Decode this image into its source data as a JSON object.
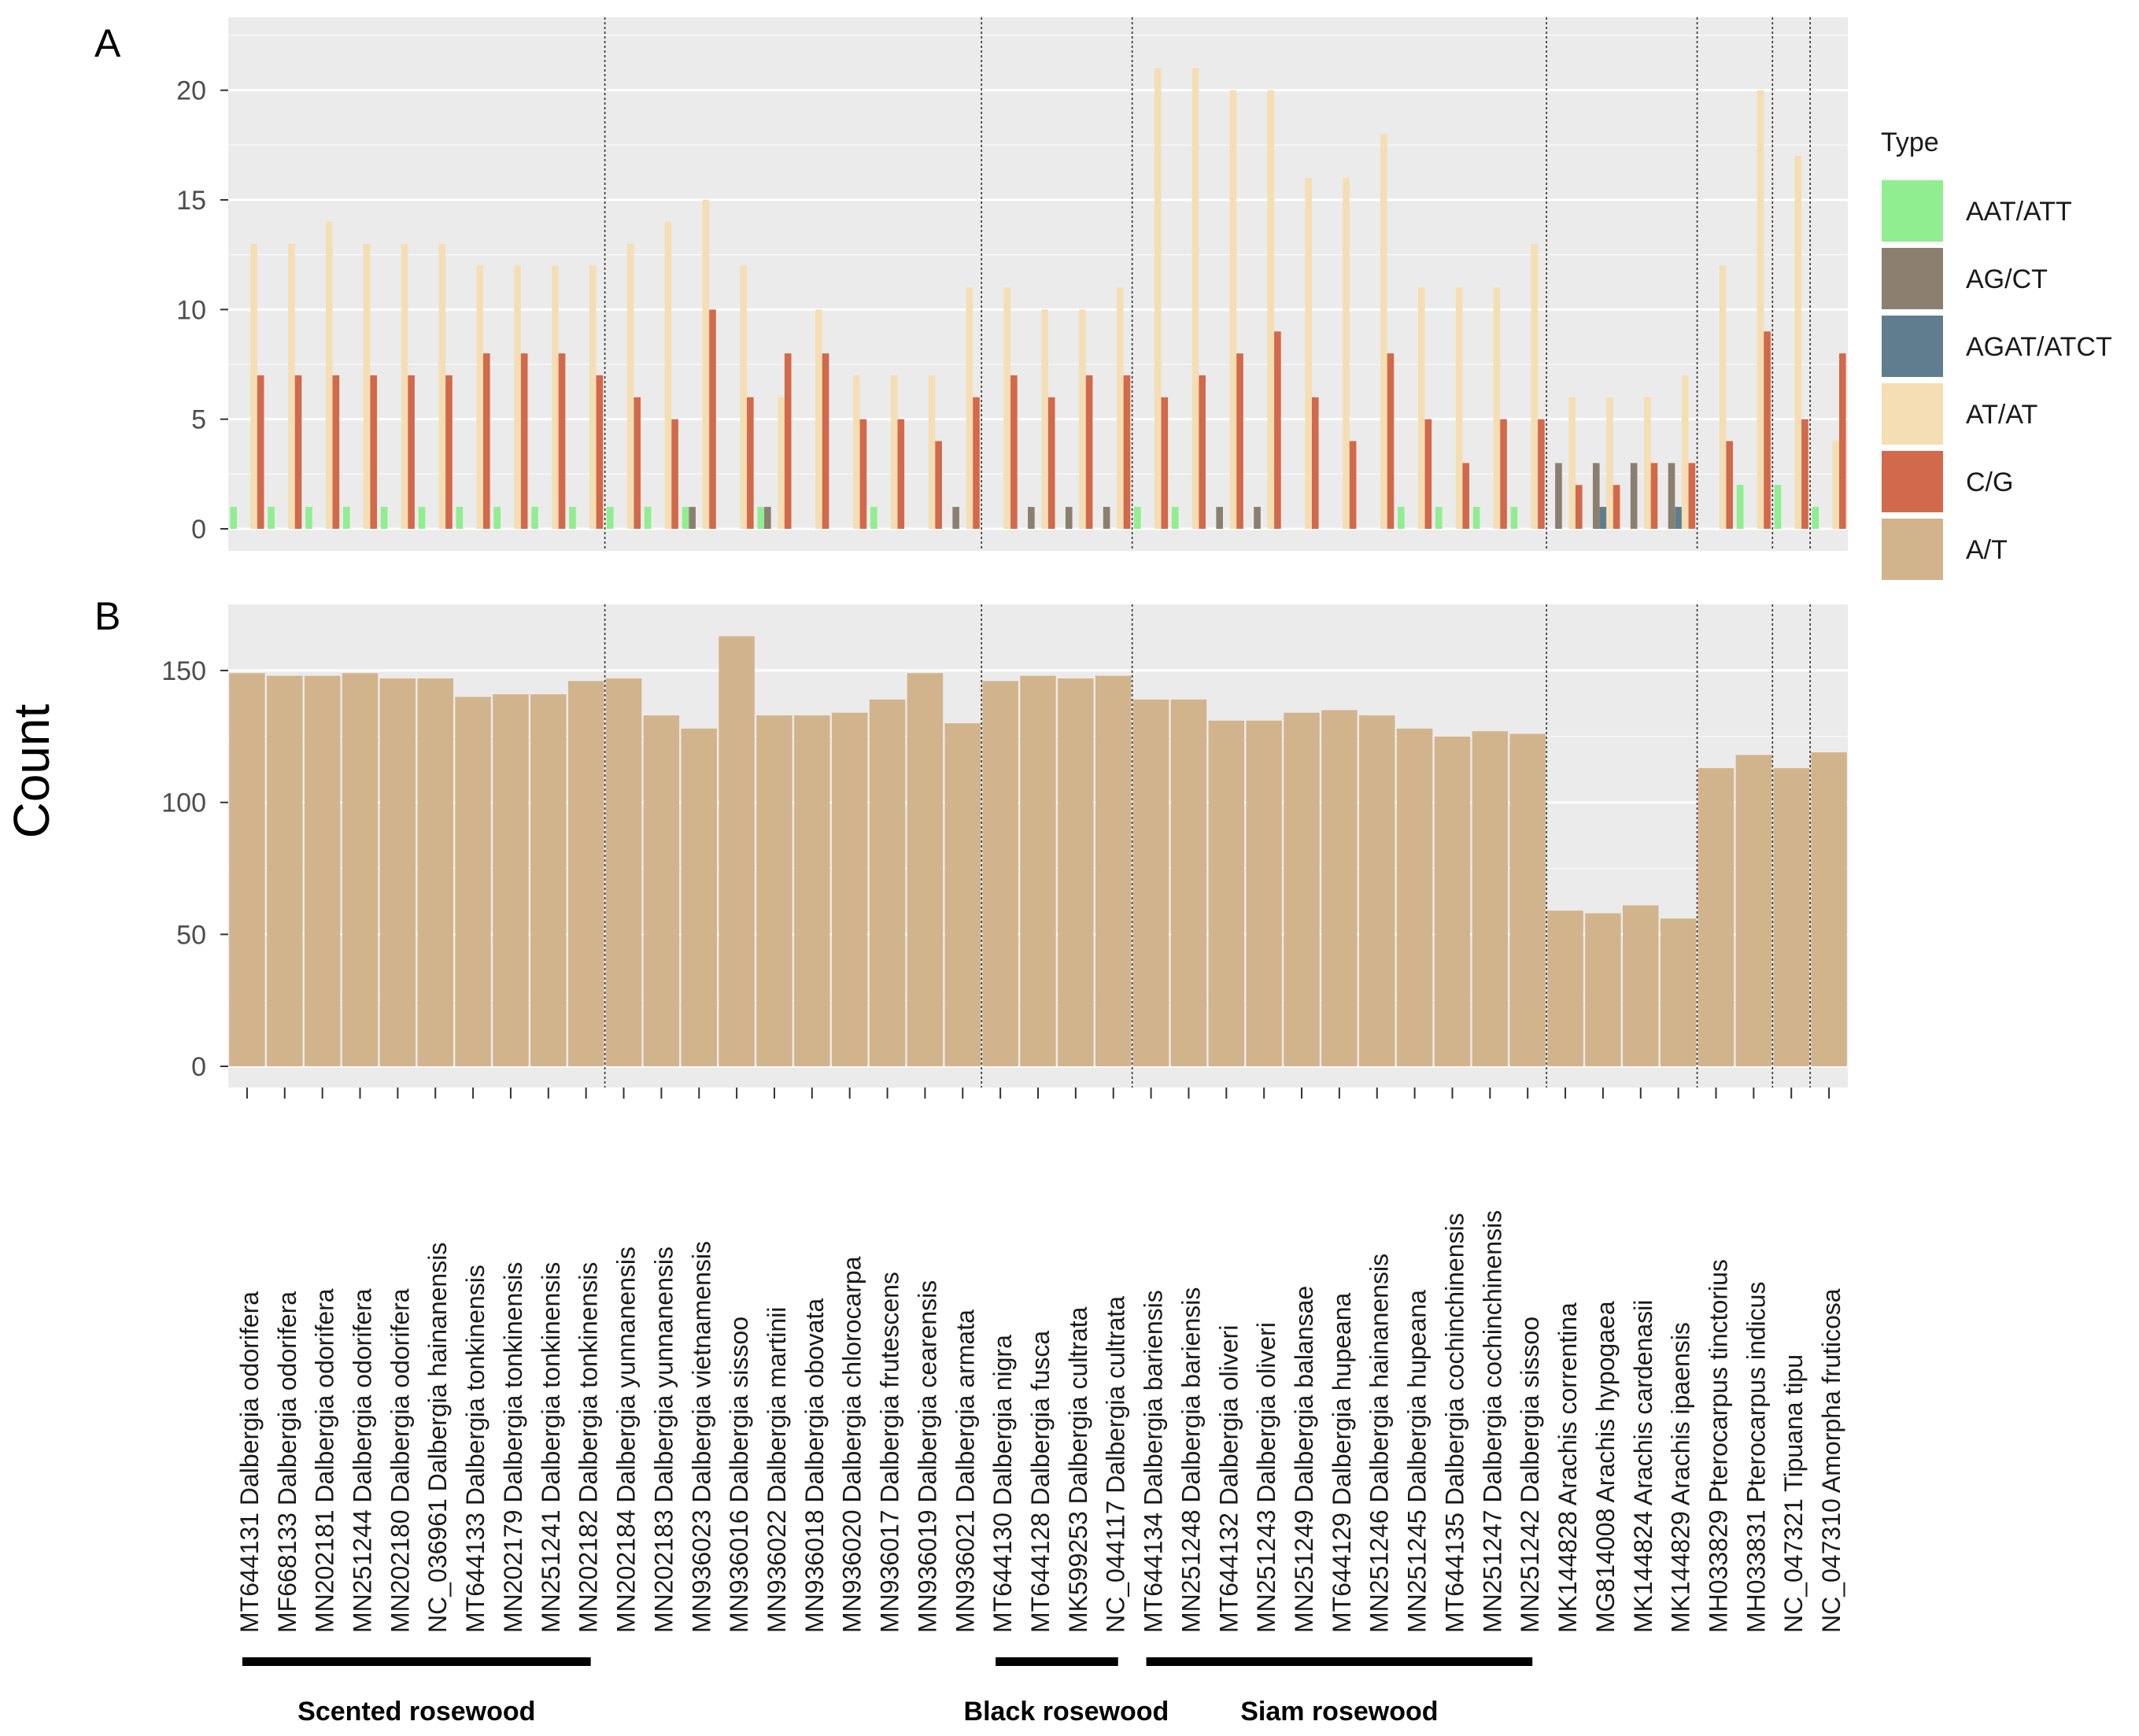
{
  "chart_data": [
    {
      "panel": "A",
      "type": "bar",
      "title": "",
      "xlabel": "",
      "ylabel": "",
      "ylim": [
        0,
        22.5
      ],
      "yticks": [
        0,
        5,
        10,
        15,
        20
      ],
      "grid": true,
      "legend": {
        "title": "Type",
        "position": "right",
        "entries": [
          {
            "name": "AAT/ATT",
            "color": "#90EE90"
          },
          {
            "name": "AG/CT",
            "color": "#8B8070"
          },
          {
            "name": "AGAT/ATCT",
            "color": "#5F7D8E"
          },
          {
            "name": "AT/AT",
            "color": "#F5DEB3"
          },
          {
            "name": "C/G",
            "color": "#D2694A"
          },
          {
            "name": "A/T",
            "color": "#D2B48C"
          }
        ]
      },
      "series": [
        {
          "name": "AAT/ATT",
          "color": "#90EE90",
          "values": [
            1,
            1,
            1,
            1,
            1,
            1,
            1,
            1,
            1,
            1,
            1,
            1,
            1,
            0,
            1,
            0,
            0,
            1,
            0,
            0,
            0,
            0,
            0,
            0,
            1,
            1,
            0,
            0,
            0,
            0,
            0,
            1,
            1,
            1,
            1,
            0,
            0,
            0,
            0,
            0,
            2,
            2,
            1
          ]
        },
        {
          "name": "AG/CT",
          "color": "#8B8070",
          "values": [
            0,
            0,
            0,
            0,
            0,
            0,
            0,
            0,
            0,
            0,
            0,
            0,
            1,
            0,
            1,
            0,
            0,
            0,
            0,
            1,
            0,
            1,
            1,
            1,
            0,
            0,
            1,
            1,
            0,
            0,
            0,
            0,
            0,
            0,
            0,
            3,
            3,
            3,
            3,
            0,
            0,
            0,
            0
          ]
        },
        {
          "name": "AGAT/ATCT",
          "color": "#5F7D8E",
          "values": [
            0,
            0,
            0,
            0,
            0,
            0,
            0,
            0,
            0,
            0,
            0,
            0,
            0,
            0,
            0,
            0,
            0,
            0,
            0,
            0,
            0,
            0,
            0,
            0,
            0,
            0,
            0,
            0,
            0,
            0,
            0,
            0,
            0,
            0,
            0,
            0,
            1,
            0,
            1,
            0,
            0,
            0,
            0
          ]
        },
        {
          "name": "AT/AT",
          "color": "#F5DEB3",
          "values": [
            13,
            13,
            14,
            13,
            13,
            13,
            12,
            12,
            12,
            12,
            13,
            14,
            15,
            12,
            6,
            10,
            7,
            7,
            7,
            11,
            11,
            10,
            10,
            11,
            21,
            21,
            20,
            20,
            16,
            16,
            18,
            11,
            11,
            11,
            13,
            6,
            6,
            6,
            7,
            12,
            20,
            17,
            4
          ]
        },
        {
          "name": "C/G",
          "color": "#D2694A",
          "values": [
            7,
            7,
            7,
            7,
            7,
            7,
            8,
            8,
            8,
            7,
            6,
            5,
            10,
            6,
            8,
            8,
            5,
            5,
            4,
            6,
            7,
            6,
            7,
            7,
            6,
            7,
            8,
            9,
            6,
            4,
            8,
            5,
            3,
            5,
            5,
            2,
            2,
            3,
            3,
            4,
            9,
            5,
            8
          ]
        }
      ]
    },
    {
      "panel": "B",
      "type": "bar",
      "title": "",
      "xlabel": "",
      "ylabel": "Count",
      "ylim": [
        0,
        170
      ],
      "yticks": [
        0,
        50,
        100,
        150
      ],
      "grid": true,
      "series": [
        {
          "name": "A/T",
          "color": "#D2B48C",
          "values": [
            149,
            148,
            148,
            149,
            147,
            147,
            140,
            141,
            141,
            146,
            147,
            133,
            128,
            163,
            133,
            133,
            134,
            139,
            149,
            130,
            146,
            148,
            147,
            148,
            139,
            139,
            131,
            131,
            134,
            135,
            133,
            128,
            125,
            127,
            126,
            59,
            58,
            61,
            56,
            113,
            118,
            113,
            119
          ]
        }
      ]
    }
  ],
  "categories": [
    "MT644131 Dalbergia odorifera",
    "MF668133 Dalbergia odorifera",
    "MN202181 Dalbergia odorifera",
    "MN251244 Dalbergia odorifera",
    "MN202180 Dalbergia odorifera",
    "NC_036961 Dalbergia hainanensis",
    "MT644133 Dalbergia tonkinensis",
    "MN202179 Dalbergia tonkinensis",
    "MN251241 Dalbergia tonkinensis",
    "MN202182 Dalbergia tonkinensis",
    "MN202184 Dalbergia yunnanensis",
    "MN202183 Dalbergia yunnanensis",
    "MN936023 Dalbergia vietnamensis",
    "MN936016 Dalbergia sissoo",
    "MN936022 Dalbergia martinii",
    "MN936018 Dalbergia obovata",
    "MN936020 Dalbergia chlorocarpa",
    "MN936017 Dalbergia frutescens",
    "MN936019 Dalbergia cearensis",
    "MN936021 Dalbergia armata",
    "MT644130 Dalbergia nigra",
    "MT644128 Dalbergia fusca",
    "MK599253 Dalbergia cultrata",
    "NC_044117 Dalbergia cultrata",
    "MT644134 Dalbergia bariensis",
    "MN251248 Dalbergia bariensis",
    "MT644132 Dalbergia oliveri",
    "MN251243 Dalbergia oliveri",
    "MN251249 Dalbergia balansae",
    "MT644129 Dalbergia hupeana",
    "MN251246 Dalbergia hainanensis",
    "MN251245 Dalbergia hupeana",
    "MT644135 Dalbergia cochinchinensis",
    "MN251247 Dalbergia cochinchinensis",
    "MN251242 Dalbergia sissoo",
    "MK144828 Arachis correntina",
    "MG814008 Arachis hypogaea",
    "MK144824 Arachis cardenasii",
    "MK144829 Arachis ipaensis",
    "MH033829 Pterocarpus tinctorius",
    "MH033831 Pterocarpus indicus",
    "NC_047321 Tipuana tipu",
    "NC_047310 Amorpha fruticosa"
  ],
  "separators_after_index": [
    9,
    19,
    23,
    34,
    38,
    40,
    41
  ],
  "groups": [
    {
      "label": "Scented rosewood",
      "start": 0,
      "end": 9
    },
    {
      "label": "Black rosewood",
      "start": 20,
      "end": 23
    },
    {
      "label": "Siam rosewood",
      "start": 24,
      "end": 34
    }
  ]
}
